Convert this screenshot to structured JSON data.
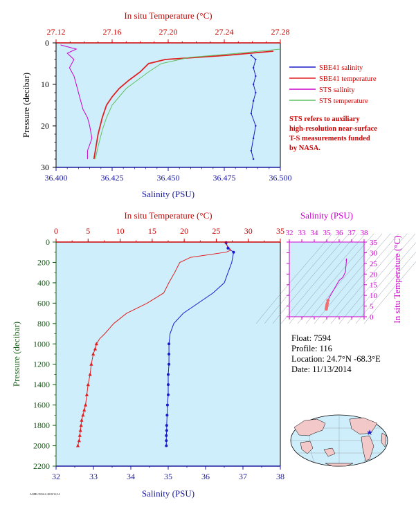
{
  "colors": {
    "bg": "#cfeefb",
    "salinity": "#1a1acc",
    "temperature": "#e02020",
    "sts_salinity": "#cc00cc",
    "sts_temperature": "#60c060",
    "axis_red": "#cc0000",
    "axis_blue": "#1a1a9e",
    "axis_green": "#1a5c1a",
    "axis_mag": "#cc00cc"
  },
  "chart_data": [
    {
      "type": "line",
      "title": "",
      "top_axis_label": "In situ Temperature (°C)",
      "bottom_axis_label": "Salinity (PSU)",
      "left_axis_label": "Pressure (decibar)",
      "xlim_salinity": [
        36.4,
        36.5
      ],
      "xlim_temperature": [
        27.12,
        27.28
      ],
      "ylim": [
        30,
        0
      ],
      "sal_ticks": [
        "36.400",
        "36.425",
        "36.450",
        "36.475",
        "36.500"
      ],
      "temp_ticks": [
        "27.12",
        "27.16",
        "27.20",
        "27.24",
        "27.28"
      ],
      "p_ticks": [
        "0",
        "10",
        "20",
        "30"
      ],
      "legend": [
        {
          "label": "SBE41 salinity",
          "color": "#1a1acc"
        },
        {
          "label": "SBE41 temperature",
          "color": "#e02020"
        },
        {
          "label": "STS salinity",
          "color": "#cc00cc"
        },
        {
          "label": "STS temperature",
          "color": "#60c060"
        }
      ],
      "note": [
        "STS refers to auxiliary",
        "high-resolution near-surface",
        "T-S measurements funded",
        "by NASA."
      ],
      "series": [
        {
          "name": "SBE41 salinity",
          "x": [
            36.487,
            36.489,
            36.488,
            36.489,
            36.488,
            36.489,
            36.488,
            36.487,
            36.489,
            36.488,
            36.487,
            36.488
          ],
          "y": [
            3,
            4,
            6,
            8,
            10,
            12,
            14,
            17,
            20,
            23,
            26,
            28
          ]
        },
        {
          "name": "SBE41 temperature",
          "x": [
            27.275,
            27.242,
            27.198,
            27.186,
            27.18,
            27.172,
            27.165,
            27.16,
            27.156,
            27.153,
            27.15,
            27.147
          ],
          "y": [
            2,
            3,
            4,
            5,
            7,
            9,
            11,
            13,
            15,
            18,
            22,
            28
          ]
        },
        {
          "name": "STS salinity",
          "x": [
            36.402,
            36.409,
            36.405,
            36.408,
            36.406,
            36.408,
            36.409,
            36.41,
            36.411,
            36.412,
            36.414,
            36.415,
            36.416,
            36.414,
            36.414
          ],
          "y": [
            0.5,
            1.5,
            2.5,
            4,
            6,
            8,
            10,
            12,
            14,
            16,
            18,
            20,
            23,
            26,
            28
          ]
        },
        {
          "name": "STS temperature",
          "x": [
            27.28,
            27.25,
            27.215,
            27.195,
            27.186,
            27.178,
            27.17,
            27.165,
            27.16,
            27.156,
            27.153,
            27.15,
            27.148
          ],
          "y": [
            1.5,
            2.5,
            3.5,
            5,
            7,
            9,
            11,
            13,
            15,
            18,
            21,
            25,
            28
          ]
        }
      ]
    },
    {
      "type": "line",
      "title": "",
      "top_axis_label": "In situ Temperature (°C)",
      "bottom_axis_label": "Salinity (PSU)",
      "left_axis_label": "Pressure (decibar)",
      "xlim_salinity": [
        32,
        38
      ],
      "xlim_temperature": [
        0,
        35
      ],
      "ylim": [
        2200,
        0
      ],
      "sal_ticks": [
        "32",
        "33",
        "34",
        "35",
        "36",
        "37",
        "38"
      ],
      "temp_ticks": [
        "0",
        "5",
        "10",
        "15",
        "20",
        "25",
        "30",
        "35"
      ],
      "p_ticks": [
        "0",
        "200",
        "400",
        "600",
        "800",
        "1000",
        "1200",
        "1400",
        "1600",
        "1800",
        "2000",
        "2200"
      ],
      "series": [
        {
          "name": "Salinity",
          "x": [
            36.55,
            36.6,
            36.75,
            36.7,
            36.6,
            36.5,
            36.2,
            35.8,
            35.4,
            35.15,
            35.05,
            35.02,
            35.02,
            35.02,
            35.0,
            35.0,
            35.0,
            34.98,
            34.97,
            34.96,
            34.96,
            34.95,
            34.95,
            34.95
          ],
          "y": [
            5,
            60,
            100,
            200,
            300,
            400,
            500,
            600,
            700,
            800,
            900,
            1000,
            1100,
            1200,
            1300,
            1400,
            1500,
            1600,
            1700,
            1800,
            1850,
            1900,
            1950,
            2000
          ]
        },
        {
          "name": "Temperature",
          "x": [
            26.3,
            27.3,
            26.5,
            21.0,
            19.3,
            18.5,
            17.6,
            16.8,
            14.2,
            11.0,
            9.0,
            7.6,
            6.8,
            6.3,
            6.1,
            5.8,
            5.5,
            5.3,
            5.0,
            4.8,
            4.6,
            4.4,
            4.2,
            4.0,
            3.9,
            3.8,
            3.7,
            3.6,
            3.4
          ],
          "y": [
            5,
            80,
            100,
            150,
            200,
            300,
            400,
            500,
            600,
            700,
            800,
            900,
            950,
            1000,
            1050,
            1100,
            1200,
            1300,
            1400,
            1500,
            1600,
            1650,
            1700,
            1750,
            1800,
            1850,
            1900,
            1950,
            2000
          ]
        }
      ]
    },
    {
      "type": "scatter",
      "title": "",
      "top_axis_label": "Salinity (PSU)",
      "right_axis_label": "In situ Temperature (°C)",
      "xlim": [
        32,
        38
      ],
      "ylim": [
        0,
        35
      ],
      "x_ticks": [
        "32",
        "33",
        "34",
        "35",
        "36",
        "37",
        "38"
      ],
      "y_ticks": [
        "0",
        "5",
        "10",
        "15",
        "20",
        "25",
        "30",
        "35"
      ],
      "series": [
        {
          "name": "T-S",
          "x": [
            36.55,
            36.6,
            36.5,
            36.3,
            36.0,
            35.7,
            35.4,
            35.2,
            35.1,
            35.05,
            35.02,
            35.0,
            34.98,
            34.96
          ],
          "y": [
            26.3,
            27.3,
            21.0,
            18.5,
            17.0,
            14.0,
            11.0,
            9.0,
            7.6,
            6.3,
            5.5,
            4.8,
            4.2,
            3.6
          ]
        }
      ]
    }
  ],
  "info": {
    "float": "Float:  7594",
    "profile": "Profile:  116",
    "location": "Location:  24.7°N  -68.3°E",
    "date": "Date:  11/13/2014"
  },
  "footer": {
    "tiny": "AOML/NOAA 2018/11/14"
  }
}
